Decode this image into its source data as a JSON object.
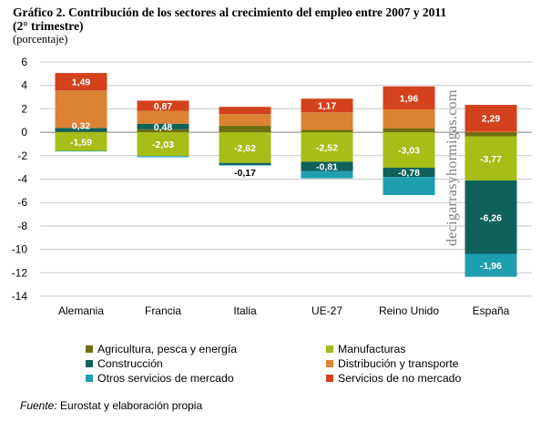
{
  "title": "Gráfico 2. Contribución  de los sectores  al crecimiento del empleo entre 2007 y 2011  (2° trimestre)",
  "subtitle": "(porcentaje)",
  "source_label": "Fuente:",
  "source_text": " Eurostat y elaboración propia",
  "watermark": "decigarrasyhormigas.com",
  "colors": {
    "agricultura": "#6d6e12",
    "manufacturas": "#a7bd18",
    "construccion": "#0f615b",
    "otros": "#1f9eb0",
    "distribucion": "#dd8334",
    "no_mercado": "#d3421c",
    "grid": "#c8c8c8"
  },
  "legend": [
    {
      "key": "agricultura",
      "label": "Agricultura, pesca y energía"
    },
    {
      "key": "manufacturas",
      "label": "Manufacturas"
    },
    {
      "key": "construccion",
      "label": "Construcción"
    },
    {
      "key": "distribucion",
      "label": "Distribución y transporte"
    },
    {
      "key": "otros",
      "label": "Otros servicios de mercado"
    },
    {
      "key": "no_mercado",
      "label": "Servicios de no mercado"
    }
  ],
  "chart_data": {
    "type": "bar",
    "stacked": true,
    "categories": [
      "Alemania",
      "Francia",
      "Italia",
      "UE-27",
      "Reino Unido",
      "España"
    ],
    "ylim": [
      -14,
      6
    ],
    "yticks": [
      6,
      4,
      2,
      0,
      -2,
      -4,
      -6,
      -8,
      -10,
      -12,
      -14
    ],
    "grid": true,
    "legend_position": "bottom",
    "series": [
      {
        "key": "agricultura",
        "name": "Agricultura, pesca y energía",
        "values": [
          0.05,
          0.25,
          0.55,
          0.2,
          0.35,
          -0.35
        ]
      },
      {
        "key": "manufacturas",
        "name": "Manufacturas",
        "values": [
          -1.59,
          -2.03,
          -2.62,
          -2.52,
          -3.03,
          -3.77
        ]
      },
      {
        "key": "construccion",
        "name": "Construcción",
        "values": [
          0.32,
          0.48,
          -0.17,
          -0.81,
          -0.78,
          -6.26
        ]
      },
      {
        "key": "otros",
        "name": "Otros servicios de mercado",
        "values": [
          -0.05,
          -0.1,
          -0.05,
          -0.6,
          -1.55,
          -1.96
        ]
      },
      {
        "key": "distribucion",
        "name": "Distribución y transporte",
        "values": [
          3.2,
          1.1,
          1.0,
          1.5,
          1.6,
          0.05
        ]
      },
      {
        "key": "no_mercado",
        "name": "Servicios de no mercado",
        "values": [
          1.49,
          0.87,
          0.62,
          1.17,
          1.96,
          2.29
        ]
      }
    ],
    "data_labels": [
      {
        "category": 0,
        "series": "no_mercado",
        "text": "1,49"
      },
      {
        "category": 0,
        "series": "construccion",
        "text": "0,32"
      },
      {
        "category": 0,
        "series": "manufacturas",
        "text": "-1,59"
      },
      {
        "category": 1,
        "series": "no_mercado",
        "text": "0,87"
      },
      {
        "category": 1,
        "series": "construccion",
        "text": "0,48"
      },
      {
        "category": 1,
        "series": "manufacturas",
        "text": "-2,03"
      },
      {
        "category": 2,
        "series": "manufacturas",
        "text": "-2,62"
      },
      {
        "category": 2,
        "series": "construccion",
        "text": "-0,17"
      },
      {
        "category": 3,
        "series": "no_mercado",
        "text": "1,17"
      },
      {
        "category": 3,
        "series": "manufacturas",
        "text": "-2,52"
      },
      {
        "category": 3,
        "series": "construccion",
        "text": "-0,81"
      },
      {
        "category": 4,
        "series": "no_mercado",
        "text": "1,96"
      },
      {
        "category": 4,
        "series": "manufacturas",
        "text": "-3,03"
      },
      {
        "category": 4,
        "series": "construccion",
        "text": "-0,78"
      },
      {
        "category": 5,
        "series": "no_mercado",
        "text": "2,29"
      },
      {
        "category": 5,
        "series": "manufacturas",
        "text": "-3,77"
      },
      {
        "category": 5,
        "series": "construccion",
        "text": "-6,26"
      },
      {
        "category": 5,
        "series": "otros",
        "text": "-1,96"
      }
    ]
  }
}
